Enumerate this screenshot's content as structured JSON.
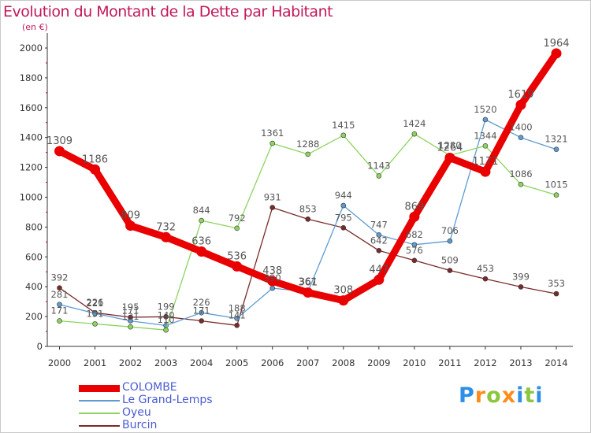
{
  "header": {
    "title": "Evolution du Montant de la Dette par Habitant",
    "unit": "(en €)"
  },
  "logo": {
    "text": "Proxiti"
  },
  "chart_data": {
    "type": "line",
    "title": "Evolution du Montant de la Dette par Habitant",
    "subtitle": "(en €)",
    "xlabel": "",
    "ylabel": "",
    "x": [
      2000,
      2001,
      2002,
      2003,
      2004,
      2005,
      2006,
      2007,
      2008,
      2009,
      2010,
      2011,
      2012,
      2013,
      2014
    ],
    "ylim": [
      0,
      2000
    ],
    "yticks": [
      0,
      200,
      400,
      600,
      800,
      1000,
      1200,
      1400,
      1600,
      1800,
      2000
    ],
    "grid": false,
    "legend_position": "bottom-left",
    "series": [
      {
        "name": "COLOMBE",
        "color": "#e90000",
        "values": [
          1309,
          1186,
          809,
          732,
          636,
          536,
          438,
          361,
          308,
          447,
          869,
          1264,
          1171,
          1619,
          1964
        ],
        "labels": [
          "1309",
          "1186",
          "809",
          "732",
          "636",
          "536",
          "438",
          "361",
          "308",
          "447",
          "869",
          "1264",
          "1171",
          "1619",
          "1964"
        ]
      },
      {
        "name": "Le Grand-Lemps",
        "color": "#5f9bd1",
        "values": [
          281,
          221,
          171,
          140,
          226,
          188,
          390,
          367,
          944,
          747,
          682,
          706,
          1520,
          1400,
          1321
        ],
        "labels": [
          "281",
          "221",
          "171",
          "140",
          "226",
          "188",
          "390",
          "367",
          "944",
          "747",
          "682",
          "706",
          "1520",
          "1400",
          "1321"
        ]
      },
      {
        "name": "Oyeu",
        "color": "#8dd45f",
        "values": [
          171,
          151,
          131,
          110,
          844,
          792,
          1361,
          1288,
          1415,
          1143,
          1424,
          1280,
          1344,
          1086,
          1015
        ],
        "labels": [
          "171",
          "151",
          "131",
          "110",
          "844",
          "792",
          "1361",
          "1288",
          "1415",
          "1143",
          "1424",
          "1280",
          "1344",
          "1086",
          "1015"
        ]
      },
      {
        "name": "Burcin",
        "color": "#7a2a2a",
        "values": [
          392,
          226,
          195,
          199,
          171,
          141,
          931,
          853,
          795,
          642,
          576,
          509,
          453,
          399,
          353
        ],
        "labels": [
          "392",
          "226",
          "195",
          "199",
          "171",
          "141",
          "931",
          "853",
          "795",
          "642",
          "576",
          "509",
          "453",
          "399",
          "353"
        ]
      }
    ]
  }
}
